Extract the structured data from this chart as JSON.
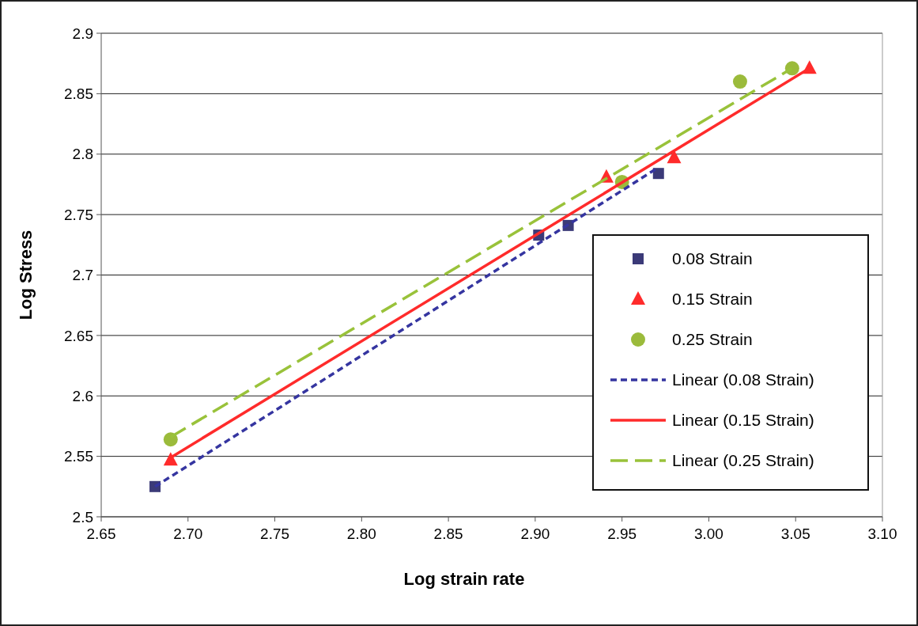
{
  "chart_data": {
    "type": "scatter",
    "xlabel": "Log strain rate",
    "ylabel": "Log Stress",
    "xlim": [
      2.65,
      3.1
    ],
    "xticks": [
      {
        "value": 2.65,
        "label": "2.65"
      },
      {
        "value": 2.7,
        "label": "2.70"
      },
      {
        "value": 2.75,
        "label": "2.75"
      },
      {
        "value": 2.8,
        "label": "2.80"
      },
      {
        "value": 2.85,
        "label": "2.85"
      },
      {
        "value": 2.9,
        "label": "2.90"
      },
      {
        "value": 2.95,
        "label": "2.95"
      },
      {
        "value": 3.0,
        "label": "3.00"
      },
      {
        "value": 3.05,
        "label": "3.05"
      },
      {
        "value": 3.1,
        "label": "3.10"
      }
    ],
    "ylim": [
      2.5,
      2.9
    ],
    "yticks": [
      {
        "value": 2.5,
        "label": "2.5"
      },
      2.55,
      {
        "value": 2.6,
        "label": "2.6"
      },
      2.65,
      {
        "value": 2.7,
        "label": "2.7"
      },
      2.75,
      {
        "value": 2.8,
        "label": "2.8"
      },
      2.85,
      {
        "value": 2.9,
        "label": "2.9"
      }
    ],
    "grid": "y",
    "legend": "right",
    "series": [
      {
        "name": "0.08 Strain",
        "marker": "square",
        "color": "#3b3a78",
        "x": [
          2.681,
          2.902,
          2.919,
          2.971
        ],
        "values": [
          2.525,
          2.733,
          2.741,
          2.784
        ]
      },
      {
        "name": "0.15 Strain",
        "marker": "triangle",
        "color": "#ff2b2b",
        "x": [
          2.69,
          2.941,
          2.98,
          3.058
        ],
        "values": [
          2.547,
          2.781,
          2.797,
          2.871
        ]
      },
      {
        "name": "0.25 Strain",
        "marker": "circle",
        "color": "#9bbb3b",
        "x": [
          2.69,
          2.95,
          3.018,
          3.048
        ],
        "values": [
          2.564,
          2.777,
          2.86,
          2.871
        ]
      },
      {
        "name": "Linear (0.08 Strain)",
        "type": "line",
        "marker": "none",
        "line_style": "dotted",
        "color": "#3535a0",
        "x": [
          2.681,
          2.971
        ],
        "values": [
          2.525,
          2.789
        ]
      },
      {
        "name": "Linear (0.15 Strain)",
        "type": "line",
        "marker": "none",
        "line_style": "solid",
        "color": "#ff2b2b",
        "x": [
          2.69,
          3.058
        ],
        "values": [
          2.549,
          2.871
        ]
      },
      {
        "name": "Linear (0.25 Strain)",
        "type": "line",
        "marker": "none",
        "line_style": "dashed",
        "color": "#99c23a",
        "x": [
          2.69,
          3.048
        ],
        "values": [
          2.566,
          2.871
        ]
      }
    ]
  }
}
